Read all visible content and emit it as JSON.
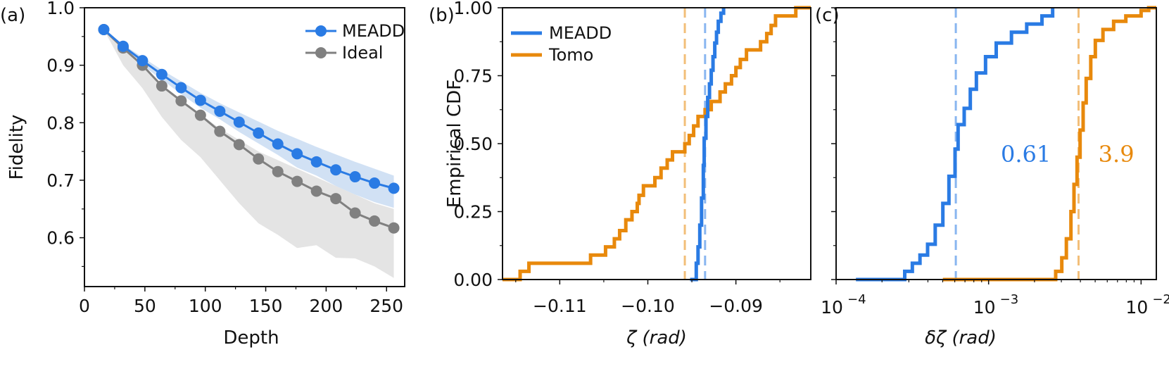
{
  "colors": {
    "blue": "#2a7be4",
    "gray": "#808080",
    "orange": "#e8890c",
    "blueBand": "#c6d9f1",
    "grayBand": "#e4e4e4"
  },
  "chart_data": [
    {
      "id": "a",
      "panel": "(a)",
      "type": "line",
      "xlabel": "Depth",
      "ylabel": "Fidelity",
      "xlim": [
        0,
        265
      ],
      "ylim": [
        0.515,
        1.0
      ],
      "xticks": [
        0,
        50,
        100,
        150,
        200,
        250
      ],
      "yticks": [
        0.6,
        0.7,
        0.8,
        0.9,
        1.0
      ],
      "ytick_labels": [
        "0.6",
        "0.7",
        "0.8",
        "0.9",
        "1.0"
      ],
      "legend": "top-right",
      "series": [
        {
          "name": "MEADD",
          "color": "#2a7be4",
          "x": [
            16,
            32,
            48,
            64,
            80,
            96,
            112,
            128,
            144,
            160,
            176,
            192,
            208,
            224,
            240,
            256
          ],
          "y": [
            0.962,
            0.933,
            0.908,
            0.884,
            0.861,
            0.839,
            0.82,
            0.801,
            0.782,
            0.763,
            0.746,
            0.732,
            0.718,
            0.706,
            0.695,
            0.686
          ],
          "band_upper": [
            0.962,
            0.936,
            0.914,
            0.892,
            0.872,
            0.852,
            0.834,
            0.818,
            0.802,
            0.786,
            0.772,
            0.758,
            0.745,
            0.732,
            0.72,
            0.708
          ],
          "band_lower": [
            0.962,
            0.928,
            0.9,
            0.875,
            0.85,
            0.826,
            0.806,
            0.784,
            0.764,
            0.744,
            0.722,
            0.708,
            0.69,
            0.675,
            0.662,
            0.652
          ]
        },
        {
          "name": "Ideal",
          "color": "#808080",
          "x": [
            16,
            32,
            48,
            64,
            80,
            96,
            112,
            128,
            144,
            160,
            176,
            192,
            208,
            224,
            240,
            256
          ],
          "y": [
            0.962,
            0.93,
            0.9,
            0.864,
            0.838,
            0.813,
            0.785,
            0.762,
            0.737,
            0.715,
            0.698,
            0.681,
            0.668,
            0.643,
            0.629,
            0.617
          ],
          "band_upper": [
            0.962,
            0.931,
            0.9,
            0.862,
            0.838,
            0.815,
            0.79,
            0.77,
            0.75,
            0.735,
            0.72,
            0.705,
            0.69,
            0.675,
            0.66,
            0.65
          ],
          "band_lower": [
            0.962,
            0.9,
            0.86,
            0.81,
            0.77,
            0.74,
            0.7,
            0.66,
            0.625,
            0.605,
            0.582,
            0.587,
            0.565,
            0.564,
            0.55,
            0.53
          ]
        }
      ]
    },
    {
      "id": "b",
      "panel": "(b)",
      "type": "line",
      "xlabel": "ζ (rad)",
      "ylabel": "Empirical CDF",
      "xlim": [
        -0.1165,
        -0.0815
      ],
      "ylim": [
        0,
        1
      ],
      "xticks": [
        -0.11,
        -0.1,
        -0.09
      ],
      "xtick_labels": [
        "−0.11",
        "−0.10",
        "−0.09"
      ],
      "yticks": [
        0,
        0.25,
        0.5,
        0.75,
        1.0
      ],
      "ytick_labels": [
        "0.00",
        "0.25",
        "0.50",
        "0.75",
        "1.00"
      ],
      "legend": "top-left",
      "vlines": [
        {
          "x": -0.0958,
          "series": "Tomo"
        },
        {
          "x": -0.0935,
          "series": "MEADD"
        }
      ],
      "series": [
        {
          "name": "MEADD",
          "color": "#2a7be4",
          "steps": [
            [
              -0.0952,
              0.0
            ],
            [
              -0.0945,
              0.06
            ],
            [
              -0.0943,
              0.12
            ],
            [
              -0.0941,
              0.2
            ],
            [
              -0.0939,
              0.3
            ],
            [
              -0.0937,
              0.42
            ],
            [
              -0.0936,
              0.52
            ],
            [
              -0.0934,
              0.6
            ],
            [
              -0.0932,
              0.67
            ],
            [
              -0.093,
              0.72
            ],
            [
              -0.0928,
              0.77
            ],
            [
              -0.0926,
              0.82
            ],
            [
              -0.0924,
              0.87
            ],
            [
              -0.0922,
              0.91
            ],
            [
              -0.092,
              0.95
            ],
            [
              -0.0917,
              0.98
            ],
            [
              -0.0914,
              1.0
            ]
          ]
        },
        {
          "name": "Tomo",
          "color": "#e8890c",
          "steps": [
            [
              -0.1165,
              0.0
            ],
            [
              -0.1145,
              0.03
            ],
            [
              -0.1135,
              0.06
            ],
            [
              -0.1065,
              0.09
            ],
            [
              -0.1048,
              0.12
            ],
            [
              -0.1038,
              0.15
            ],
            [
              -0.1032,
              0.18
            ],
            [
              -0.1025,
              0.22
            ],
            [
              -0.1018,
              0.25
            ],
            [
              -0.1012,
              0.28
            ],
            [
              -0.101,
              0.31
            ],
            [
              -0.1005,
              0.345
            ],
            [
              -0.0992,
              0.375
            ],
            [
              -0.0985,
              0.41
            ],
            [
              -0.0978,
              0.44
            ],
            [
              -0.0972,
              0.47
            ],
            [
              -0.0958,
              0.5
            ],
            [
              -0.0953,
              0.53
            ],
            [
              -0.0948,
              0.565
            ],
            [
              -0.0943,
              0.6
            ],
            [
              -0.0935,
              0.625
            ],
            [
              -0.0928,
              0.655
            ],
            [
              -0.0918,
              0.69
            ],
            [
              -0.0912,
              0.72
            ],
            [
              -0.0905,
              0.75
            ],
            [
              -0.09,
              0.78
            ],
            [
              -0.0895,
              0.81
            ],
            [
              -0.0888,
              0.845
            ],
            [
              -0.0872,
              0.875
            ],
            [
              -0.0865,
              0.905
            ],
            [
              -0.086,
              0.935
            ],
            [
              -0.0855,
              0.97
            ],
            [
              -0.0832,
              1.0
            ],
            [
              -0.0815,
              1.0
            ]
          ]
        }
      ]
    },
    {
      "id": "c",
      "panel": "(c)",
      "type": "line",
      "xlabel": "δζ (rad)",
      "ylabel": "",
      "xscale": "log",
      "xlim_log10": [
        -4,
        -1.9
      ],
      "ylim": [
        0,
        1
      ],
      "xticks_log10": [
        -4,
        -3,
        -2
      ],
      "xtick_base": "10",
      "xtick_exponents": [
        "−4",
        "−3",
        "−2"
      ],
      "vlines": [
        {
          "x_log10": -3.215,
          "series": "MEADD"
        },
        {
          "x_log10": -2.41,
          "series": "Tomo"
        }
      ],
      "annotations": [
        {
          "text": "0.61",
          "series": "MEADD",
          "x_log10": -2.92,
          "y": 0.485
        },
        {
          "text": "3.9",
          "series": "Tomo",
          "x_log10": -2.28,
          "y": 0.485
        }
      ],
      "series": [
        {
          "name": "MEADD",
          "color": "#2a7be4",
          "steps_log10": [
            [
              -3.87,
              0.0
            ],
            [
              -3.6,
              0.0
            ],
            [
              -3.55,
              0.03
            ],
            [
              -3.5,
              0.06
            ],
            [
              -3.45,
              0.09
            ],
            [
              -3.4,
              0.13
            ],
            [
              -3.35,
              0.2
            ],
            [
              -3.3,
              0.28
            ],
            [
              -3.26,
              0.38
            ],
            [
              -3.22,
              0.48
            ],
            [
              -3.2,
              0.57
            ],
            [
              -3.16,
              0.63
            ],
            [
              -3.12,
              0.7
            ],
            [
              -3.08,
              0.76
            ],
            [
              -3.02,
              0.82
            ],
            [
              -2.95,
              0.87
            ],
            [
              -2.85,
              0.91
            ],
            [
              -2.75,
              0.94
            ],
            [
              -2.65,
              0.97
            ],
            [
              -2.58,
              1.0
            ]
          ]
        },
        {
          "name": "Tomo",
          "color": "#e8890c",
          "steps_log10": [
            [
              -3.3,
              0.0
            ],
            [
              -2.6,
              0.0
            ],
            [
              -2.56,
              0.03
            ],
            [
              -2.52,
              0.08
            ],
            [
              -2.49,
              0.15
            ],
            [
              -2.46,
              0.25
            ],
            [
              -2.44,
              0.35
            ],
            [
              -2.42,
              0.45
            ],
            [
              -2.4,
              0.55
            ],
            [
              -2.38,
              0.65
            ],
            [
              -2.36,
              0.74
            ],
            [
              -2.33,
              0.82
            ],
            [
              -2.3,
              0.88
            ],
            [
              -2.25,
              0.92
            ],
            [
              -2.18,
              0.95
            ],
            [
              -2.1,
              0.97
            ],
            [
              -2.0,
              0.99
            ],
            [
              -1.95,
              1.0
            ],
            [
              -1.9,
              1.0
            ]
          ]
        }
      ]
    }
  ]
}
